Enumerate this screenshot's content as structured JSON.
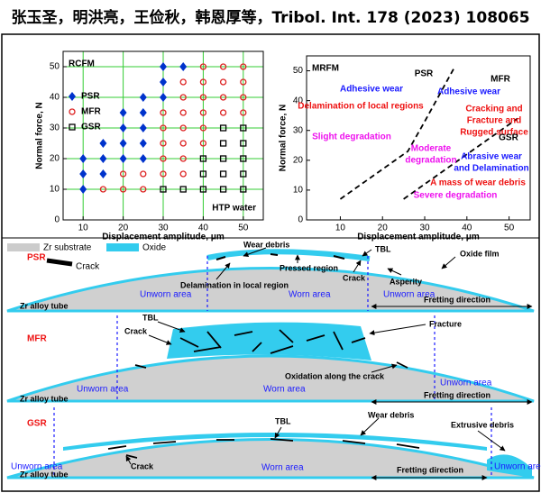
{
  "header": {
    "title": "张玉圣，明洪亮，王俭秋，韩恩厚等，Tribol. Int. 178 (2023) 108065"
  },
  "chart_data": [
    {
      "type": "scatter",
      "title": "RCFM",
      "xlabel": "Displacement amplitude, μm",
      "ylabel": "Normal force, N",
      "annotation": "HTP water",
      "xlim": [
        5,
        55
      ],
      "ylim": [
        0,
        55
      ],
      "xticks": [
        10,
        20,
        30,
        40,
        50
      ],
      "yticks": [
        0,
        10,
        20,
        30,
        40,
        50
      ],
      "grid": true,
      "grid_color": "#33cc33",
      "legend": "upper left",
      "series": [
        {
          "name": "PSR",
          "color": "#0033cc",
          "marker": "diamond",
          "x": [
            30,
            35,
            30,
            25,
            30,
            20,
            25,
            20,
            25,
            15,
            20,
            25,
            10,
            15,
            20,
            25,
            10,
            15,
            10
          ],
          "y": [
            50,
            50,
            45,
            40,
            40,
            35,
            35,
            30,
            30,
            25,
            25,
            25,
            20,
            20,
            20,
            20,
            15,
            15,
            10
          ]
        },
        {
          "name": "MFR",
          "color": "#dd2222",
          "marker": "circle",
          "x": [
            40,
            45,
            50,
            35,
            40,
            45,
            50,
            35,
            40,
            45,
            50,
            30,
            35,
            40,
            45,
            50,
            30,
            35,
            40,
            30,
            35,
            40,
            30,
            35,
            20,
            25,
            30,
            35,
            15,
            20,
            25
          ],
          "y": [
            50,
            50,
            50,
            45,
            45,
            45,
            45,
            40,
            40,
            40,
            40,
            35,
            35,
            35,
            35,
            35,
            30,
            30,
            30,
            25,
            25,
            25,
            20,
            20,
            15,
            15,
            15,
            15,
            10,
            10,
            10
          ]
        },
        {
          "name": "GSR",
          "color": "#000000",
          "marker": "square",
          "x": [
            45,
            50,
            45,
            50,
            40,
            45,
            50,
            40,
            45,
            50,
            30,
            35,
            40,
            45,
            50
          ],
          "y": [
            30,
            30,
            25,
            25,
            20,
            20,
            20,
            15,
            15,
            15,
            10,
            10,
            10,
            10,
            10
          ]
        }
      ]
    },
    {
      "type": "line",
      "title": "MRFM",
      "xlabel": "Displacement amplitude, μm",
      "ylabel": "Normal force, N",
      "xlim": [
        2,
        55
      ],
      "ylim": [
        0,
        55
      ],
      "xticks": [
        10,
        20,
        30,
        40,
        50
      ],
      "yticks": [
        0,
        10,
        20,
        30,
        40,
        50
      ],
      "grid": false,
      "dashed": true,
      "series": [
        {
          "color": "#000000",
          "x": [
            10,
            20,
            26,
            30,
            37
          ],
          "y": [
            7,
            17,
            23,
            33,
            51
          ]
        },
        {
          "color": "#000000",
          "x": [
            25,
            35,
            45,
            52
          ],
          "y": [
            7,
            17,
            27,
            34
          ]
        }
      ],
      "annotations": [
        {
          "text": "PSR",
          "color": "#000000"
        },
        {
          "text": "MFR",
          "color": "#000000"
        },
        {
          "text": "Adhesive wear",
          "color": "#1a1aff"
        },
        {
          "text": "Adhesive wear",
          "color": "#1a1aff"
        },
        {
          "text": "Delamination of local regions",
          "color": "#ee1111"
        },
        {
          "text": "Cracking and",
          "color": "#ee1111"
        },
        {
          "text": "Fracture and",
          "color": "#ee1111"
        },
        {
          "text": "Rugged surface",
          "color": "#ee1111"
        },
        {
          "text": "Slight degradation",
          "color": "#ee11ee"
        },
        {
          "text": "GSR",
          "color": "#000000"
        },
        {
          "text": "Moderate",
          "color": "#ee11ee"
        },
        {
          "text": "degradation",
          "color": "#ee11ee"
        },
        {
          "text": "Abrasive wear",
          "color": "#1a1aff"
        },
        {
          "text": "and Delamination",
          "color": "#1a1aff"
        },
        {
          "text": "A mass of wear debris",
          "color": "#ee1111"
        },
        {
          "text": "Severe degradation",
          "color": "#ee11ee"
        }
      ]
    }
  ],
  "legend": {
    "substrate": "Zr substrate",
    "oxide": "Oxide",
    "crack": "Crack"
  },
  "diagrams": [
    {
      "label": "PSR",
      "texts": [
        "Wear debris",
        "TBL",
        "Pressed region",
        "Crack",
        "Asperity",
        "Oxide film",
        "Delamination in local region",
        "Zr alloy tube",
        "Unworn area",
        "Worn area",
        "Unworn area",
        "Fretting direction"
      ]
    },
    {
      "label": "MFR",
      "texts": [
        "TBL",
        "Crack",
        "Fracture",
        "Oxidation along the crack",
        "Zr alloy tube",
        "Unworn area",
        "Worn area",
        "Unworn area",
        "Fretting direction"
      ]
    },
    {
      "label": "GSR",
      "texts": [
        "TBL",
        "Wear debris",
        "Extrusive debris",
        "Unworn area",
        "Zr alloy tube",
        "Crack",
        "Worn area",
        "Fretting direction",
        "Unworn area"
      ]
    }
  ]
}
